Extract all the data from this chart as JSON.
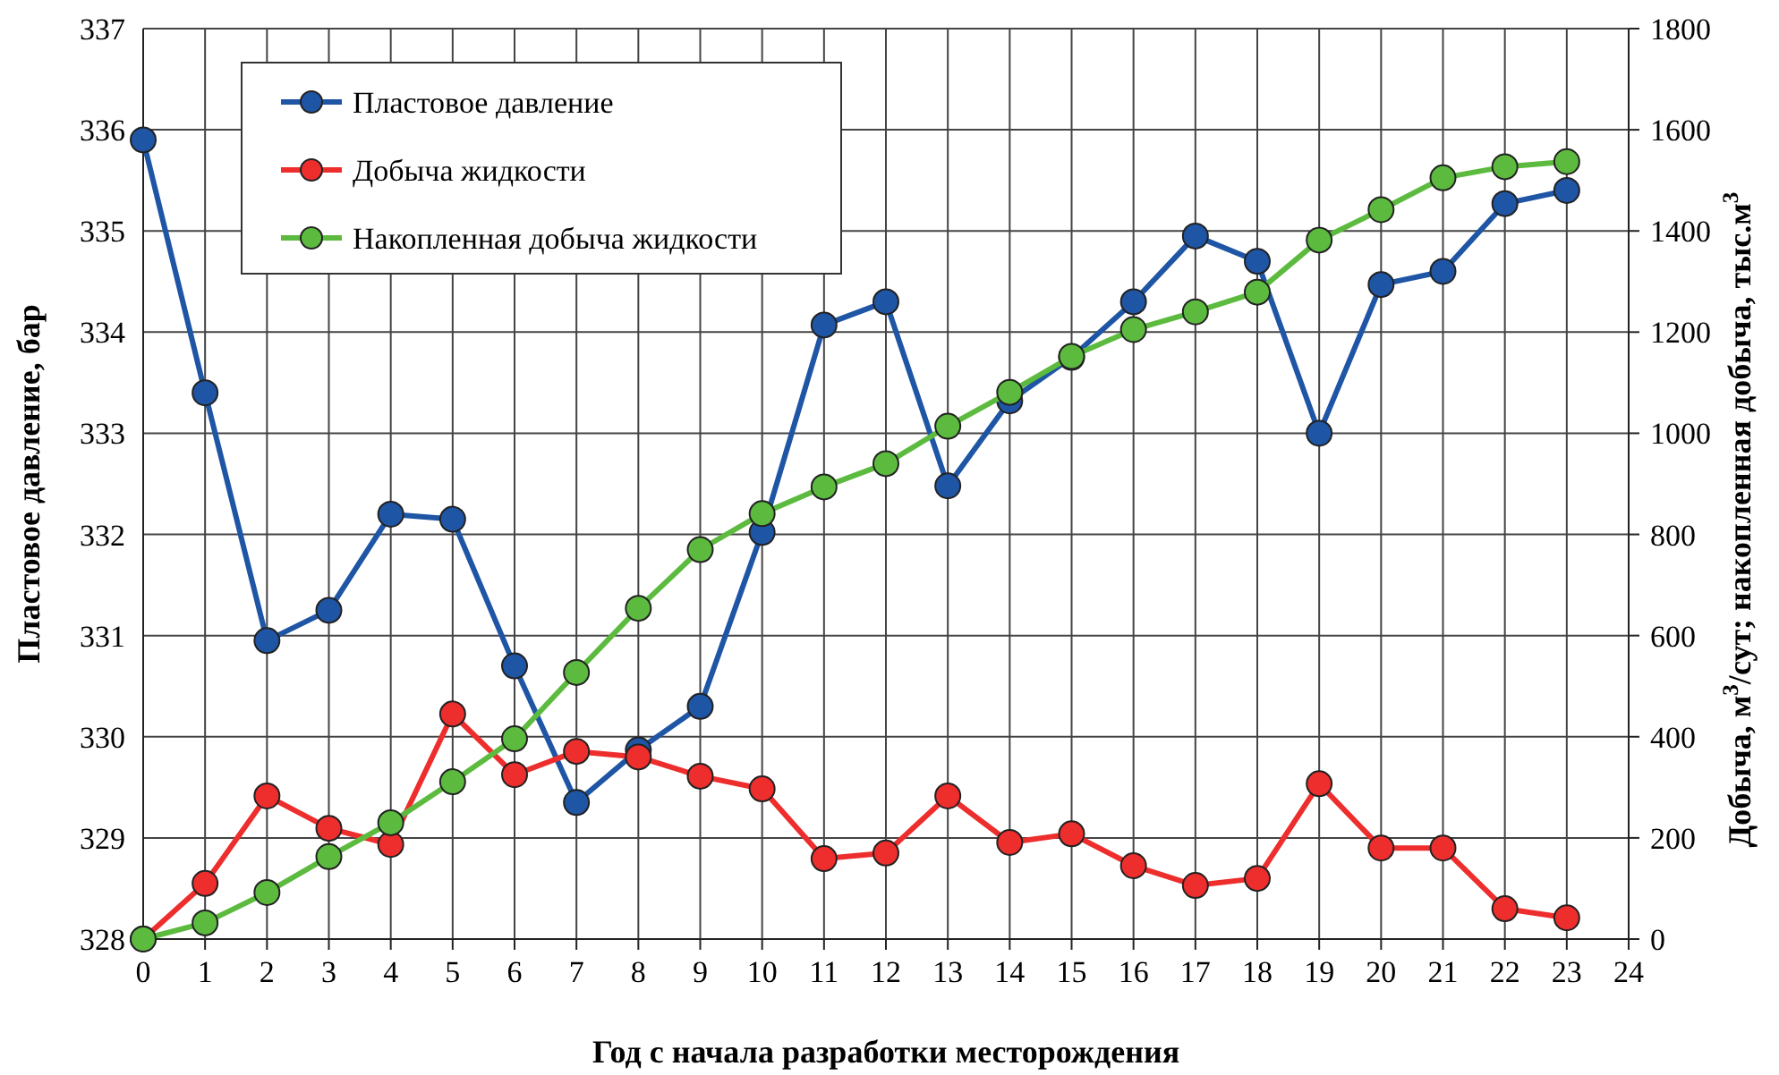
{
  "chart_data": {
    "type": "line",
    "xlabel": "Год с начала разработки месторождения",
    "ylabel": "Пластовое давление, бар",
    "y2label": "Добыча, м$^{3}$/сут; накопленная добыча, тыс.м$^{3}$",
    "x": [
      0,
      1,
      2,
      3,
      4,
      5,
      6,
      7,
      8,
      9,
      10,
      11,
      12,
      13,
      14,
      15,
      16,
      17,
      18,
      19,
      20,
      21,
      22,
      23
    ],
    "xlim": [
      0,
      24
    ],
    "xticks": [
      0,
      1,
      2,
      3,
      4,
      5,
      6,
      7,
      8,
      9,
      10,
      11,
      12,
      13,
      14,
      15,
      16,
      17,
      18,
      19,
      20,
      21,
      22,
      23,
      24
    ],
    "ylim": [
      328,
      337
    ],
    "yticks": [
      328,
      329,
      330,
      331,
      332,
      333,
      334,
      335,
      336,
      337
    ],
    "y2lim": [
      0,
      1800
    ],
    "y2ticks": [
      0,
      200,
      400,
      600,
      800,
      1000,
      1200,
      1400,
      1600,
      1800
    ],
    "grid": true,
    "legend": "top left",
    "marker": "circle",
    "line_style": "solid",
    "series": [
      {
        "name": "Пластовое давление",
        "color": "#1f55a5",
        "values": [
          335.9,
          333.4,
          330.95,
          331.25,
          332.2,
          332.15,
          330.7,
          329.35,
          329.87,
          330.3,
          332.02,
          334.07,
          334.3,
          332.48,
          333.32,
          333.75,
          334.3,
          334.95,
          334.7,
          333.0,
          334.47,
          334.6,
          335.27,
          335.4
        ]
      },
      {
        "name": "Добыча жидкости",
        "color": "#ee2d2d",
        "axis": "y2",
        "values": [
          0,
          110,
          283,
          219,
          187,
          445,
          325,
          371,
          360,
          322,
          297,
          159,
          170,
          283,
          191,
          208,
          145,
          106,
          120,
          307,
          180,
          180,
          60,
          42
        ]
      },
      {
        "name": "Накопленная добыча жидкости",
        "color": "#5cbb3f",
        "axis": "y2",
        "values": [
          0,
          32,
          92,
          163,
          230,
          311,
          396,
          527,
          654,
          770,
          841,
          894,
          940,
          1014,
          1081,
          1152,
          1205,
          1240,
          1279,
          1382,
          1442,
          1505,
          1527,
          1537
        ]
      }
    ]
  }
}
